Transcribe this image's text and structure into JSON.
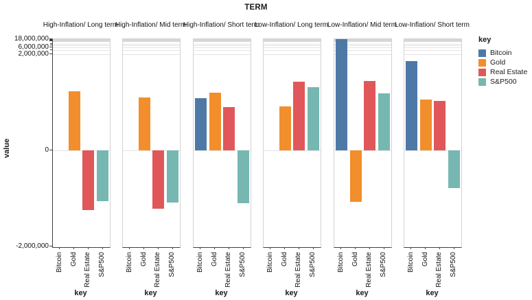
{
  "title": "TERM",
  "y_axis": {
    "label": "value",
    "tick_labels": [
      "18,000,000",
      "6,000,000",
      "2,000,000",
      "0",
      "-2,000,000"
    ],
    "tick_values": [
      18000000,
      6000000,
      2000000,
      0,
      -2000000
    ]
  },
  "x_axis": {
    "label": "key",
    "categories": [
      "Bitcoin",
      "Gold",
      "Real Estate",
      "S&P500"
    ]
  },
  "legend": {
    "title": "key",
    "entries": [
      {
        "label": "Bitcoin",
        "color": "#4E79A7"
      },
      {
        "label": "Gold",
        "color": "#F28E2B"
      },
      {
        "label": "Real Estate",
        "color": "#E15759"
      },
      {
        "label": "S&P500",
        "color": "#76B7B2"
      }
    ]
  },
  "chart_data": {
    "type": "bar",
    "title": "TERM",
    "xlabel": "key",
    "ylabel": "value",
    "categories": [
      "Bitcoin",
      "Gold",
      "Real Estate",
      "S&P500"
    ],
    "series_colors": {
      "Bitcoin": "#4E79A7",
      "Gold": "#F28E2B",
      "Real Estate": "#E15759",
      "S&P500": "#76B7B2"
    },
    "facets": [
      {
        "title": "High-Inflation/ Long term",
        "values": [
          0,
          1230000,
          -1240000,
          -1060000
        ]
      },
      {
        "title": "High-Inflation/ Mid term",
        "values": [
          0,
          1100000,
          -1210000,
          -1090000
        ]
      },
      {
        "title": "High-Inflation/ Short term",
        "values": [
          1090000,
          1200000,
          900000,
          -1100000
        ]
      },
      {
        "title": "Low-Inflation/ Long term",
        "values": [
          0,
          920000,
          1430000,
          1310000
        ]
      },
      {
        "title": "Low-Inflation/ Mid term",
        "values": [
          18000000,
          -1070000,
          1440000,
          1190000
        ]
      },
      {
        "title": "Low-Inflation/ Short term",
        "values": [
          1860000,
          1060000,
          1030000,
          -780000
        ]
      }
    ],
    "y_scale": {
      "type": "symlog",
      "linear_range": [
        -2000000,
        2000000
      ],
      "labeled_ticks": [
        -2000000,
        0,
        2000000,
        6000000,
        18000000
      ]
    },
    "ylim": [
      -2000000,
      20000000
    ],
    "grid": true,
    "legend_position": "right"
  }
}
